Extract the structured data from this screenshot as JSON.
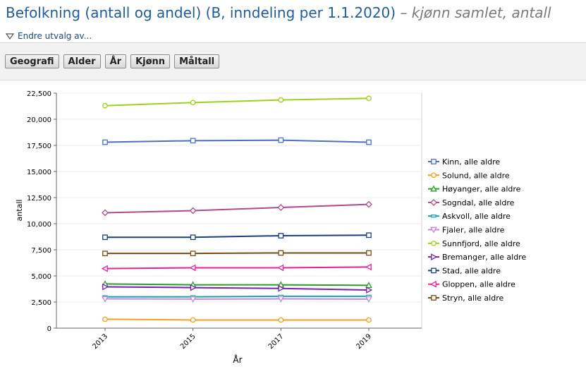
{
  "header": {
    "title": "Befolkning (antall og andel) (B, inndeling per 1.1.2020)",
    "subtitle": "– kjønn samlet, antall",
    "change_selection": "Endre utvalg av..."
  },
  "toolbar": {
    "buttons": [
      "Geografi",
      "Alder",
      "År",
      "Kjønn",
      "Måltall"
    ]
  },
  "chart_data": {
    "type": "line",
    "xlabel": "År",
    "ylabel": "antall",
    "categories": [
      "2013",
      "2015",
      "2017",
      "2019"
    ],
    "ylim": [
      0,
      22500
    ],
    "yticks": [
      "0",
      "2,500",
      "5,000",
      "7,500",
      "10,000",
      "12,500",
      "15,000",
      "17,500",
      "20,000",
      "22,500"
    ],
    "grid": true,
    "legend_position": "right",
    "series": [
      {
        "name": "Kinn, alle aldre",
        "color": "#4a6fc4",
        "marker": "square",
        "values": [
          17800,
          17950,
          18000,
          17800
        ]
      },
      {
        "name": "Solund, alle aldre",
        "color": "#f0a020",
        "marker": "circle",
        "values": [
          850,
          780,
          780,
          780
        ]
      },
      {
        "name": "Høyanger, alle aldre",
        "color": "#2a9d2a",
        "marker": "triangle-up",
        "values": [
          4230,
          4150,
          4150,
          4100
        ]
      },
      {
        "name": "Sogndal, alle aldre",
        "color": "#b04a8a",
        "marker": "diamond",
        "values": [
          11050,
          11250,
          11550,
          11850
        ]
      },
      {
        "name": "Askvoll, alle aldre",
        "color": "#1aa0b0",
        "marker": "dash",
        "values": [
          3000,
          3000,
          3050,
          3050
        ]
      },
      {
        "name": "Fjaler, alle aldre",
        "color": "#c08ae0",
        "marker": "triangle-down",
        "values": [
          2800,
          2780,
          2800,
          2780
        ]
      },
      {
        "name": "Sunnfjord, alle aldre",
        "color": "#9ad21e",
        "marker": "circle",
        "values": [
          21300,
          21600,
          21850,
          22000
        ]
      },
      {
        "name": "Bremanger, alle aldre",
        "color": "#7a1fb0",
        "marker": "triangle-right",
        "values": [
          3950,
          3880,
          3800,
          3650
        ]
      },
      {
        "name": "Stad, alle aldre",
        "color": "#1a3f7a",
        "marker": "square",
        "values": [
          8700,
          8700,
          8850,
          8900
        ]
      },
      {
        "name": "Gloppen, alle aldre",
        "color": "#e8209a",
        "marker": "triangle-left",
        "values": [
          5700,
          5780,
          5780,
          5850
        ]
      },
      {
        "name": "Stryn, alle aldre",
        "color": "#7a4a1a",
        "marker": "square",
        "values": [
          7150,
          7150,
          7200,
          7200
        ]
      }
    ]
  }
}
